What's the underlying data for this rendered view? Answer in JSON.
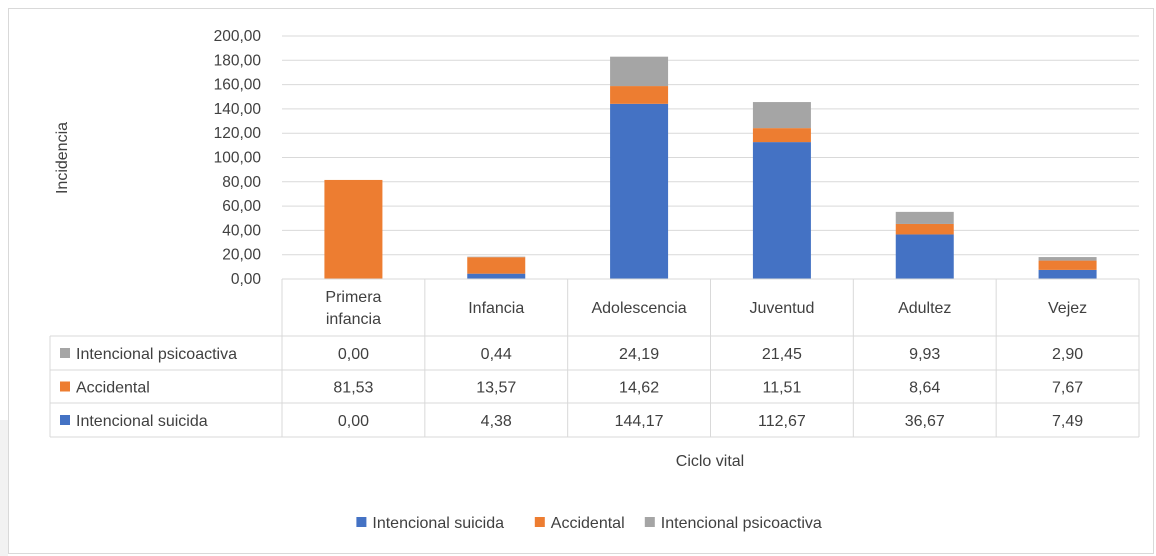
{
  "chart_data": {
    "type": "bar",
    "stacked": true,
    "categories": [
      "Primera infancia",
      "Infancia",
      "Adolescencia",
      "Juventud",
      "Adultez",
      "Vejez"
    ],
    "series": [
      {
        "name": "Intencional suicida",
        "color": "#4472c4",
        "values": [
          0.0,
          4.38,
          144.17,
          112.67,
          36.67,
          7.49
        ],
        "labels": [
          "0,00",
          "4,38",
          "144,17",
          "112,67",
          "36,67",
          "7,49"
        ]
      },
      {
        "name": "Accidental",
        "color": "#ed7d31",
        "values": [
          81.53,
          13.57,
          14.62,
          11.51,
          8.64,
          7.67
        ],
        "labels": [
          "81,53",
          "13,57",
          "14,62",
          "11,51",
          "8,64",
          "7,67"
        ]
      },
      {
        "name": "Intencional psicoactiva",
        "color": "#a5a5a5",
        "values": [
          0.0,
          0.44,
          24.19,
          21.45,
          9.93,
          2.9
        ],
        "labels": [
          "0,00",
          "0,44",
          "24,19",
          "21,45",
          "9,93",
          "2,90"
        ]
      }
    ],
    "ylim": [
      0,
      200
    ],
    "yticks": [
      "0,00",
      "20,00",
      "40,00",
      "60,00",
      "80,00",
      "100,00",
      "120,00",
      "140,00",
      "160,00",
      "180,00",
      "200,00"
    ],
    "xlabel": "Ciclo vital",
    "ylabel": "Incidencia",
    "grid": true,
    "legend": "bottom",
    "data_table": true
  }
}
